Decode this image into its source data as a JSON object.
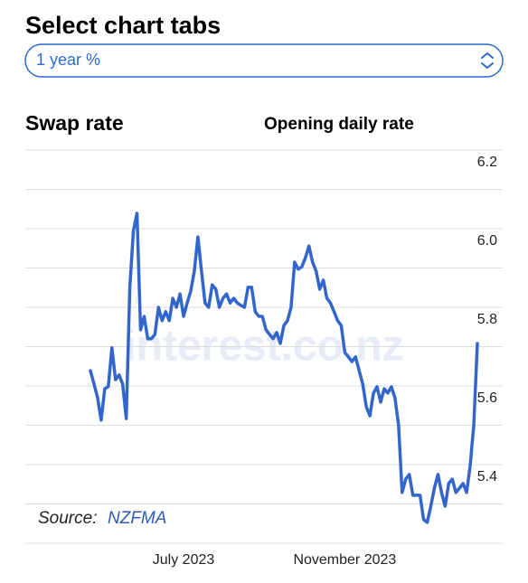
{
  "header": {
    "title": "Select chart tabs",
    "dropdown": "1 year %"
  },
  "chart_data": {
    "type": "line",
    "title": "Swap rate",
    "subtitle": "Opening daily rate",
    "watermark": "interest.co.nz",
    "source_label": "Source:",
    "source": "NZFMA",
    "ylim": [
      5.2,
      6.2
    ],
    "yticks": [
      5.4,
      5.6,
      5.8,
      {
        "value": 6,
        "label": "6.0"
      },
      6.2
    ],
    "grid_yticks": [
      5.2,
      5.3,
      5.4,
      5.5,
      5.6,
      5.7,
      5.8,
      5.9,
      6,
      6.1,
      6.2
    ],
    "grid": true,
    "categories": [
      null,
      null,
      null,
      null,
      null,
      null,
      null,
      null,
      null,
      null,
      null,
      null,
      null,
      null,
      null,
      null,
      null,
      null,
      null,
      null,
      null,
      null,
      null,
      null,
      null,
      null,
      "July 2023",
      null,
      null,
      null,
      null,
      null,
      null,
      null,
      null,
      null,
      null,
      null,
      null,
      null,
      null,
      null,
      null,
      null,
      null,
      null,
      null,
      null,
      null,
      null,
      null,
      null,
      null,
      null,
      null,
      null,
      null,
      null,
      null,
      null,
      null,
      null,
      null,
      null,
      null,
      null,
      null,
      null,
      null,
      null,
      null,
      "November 2023",
      null,
      null,
      null,
      null,
      null,
      null,
      null,
      null,
      null,
      null,
      null,
      null,
      null,
      null,
      null,
      null,
      null,
      null,
      null,
      null,
      null,
      null,
      null,
      null,
      null,
      null,
      null,
      null,
      null,
      null,
      null,
      null,
      null,
      null,
      null,
      null,
      null
    ],
    "series": [
      {
        "name": "Swap rate",
        "color": "#3366cc",
        "values": [
          5.639,
          5.605,
          5.57,
          5.513,
          5.593,
          5.598,
          5.697,
          5.616,
          5.628,
          5.605,
          5.517,
          5.851,
          5.995,
          6.039,
          5.743,
          5.777,
          5.72,
          5.72,
          5.731,
          5.8,
          5.766,
          5.789,
          5.766,
          5.823,
          5.8,
          5.834,
          5.777,
          5.811,
          5.841,
          5.892,
          5.979,
          5.892,
          5.811,
          5.8,
          5.857,
          5.846,
          5.8,
          5.823,
          5.834,
          5.811,
          5.823,
          5.811,
          5.805,
          5.8,
          5.851,
          5.851,
          5.789,
          5.777,
          5.777,
          5.743,
          5.731,
          5.72,
          5.736,
          5.708,
          5.754,
          5.766,
          5.8,
          5.915,
          5.897,
          5.903,
          5.926,
          5.956,
          5.915,
          5.892,
          5.846,
          5.869,
          5.823,
          5.811,
          5.789,
          5.766,
          5.754,
          5.685,
          5.674,
          5.662,
          5.674,
          5.639,
          5.605,
          5.547,
          5.524,
          5.582,
          5.598,
          5.559,
          5.593,
          5.582,
          5.598,
          5.57,
          5.501,
          5.329,
          5.363,
          5.375,
          5.322,
          5.322,
          5.322,
          5.26,
          5.253,
          5.294,
          5.34,
          5.375,
          5.329,
          5.294,
          5.352,
          5.363,
          5.329,
          5.34,
          5.352,
          5.329,
          5.398,
          5.501,
          5.708
        ]
      }
    ]
  }
}
